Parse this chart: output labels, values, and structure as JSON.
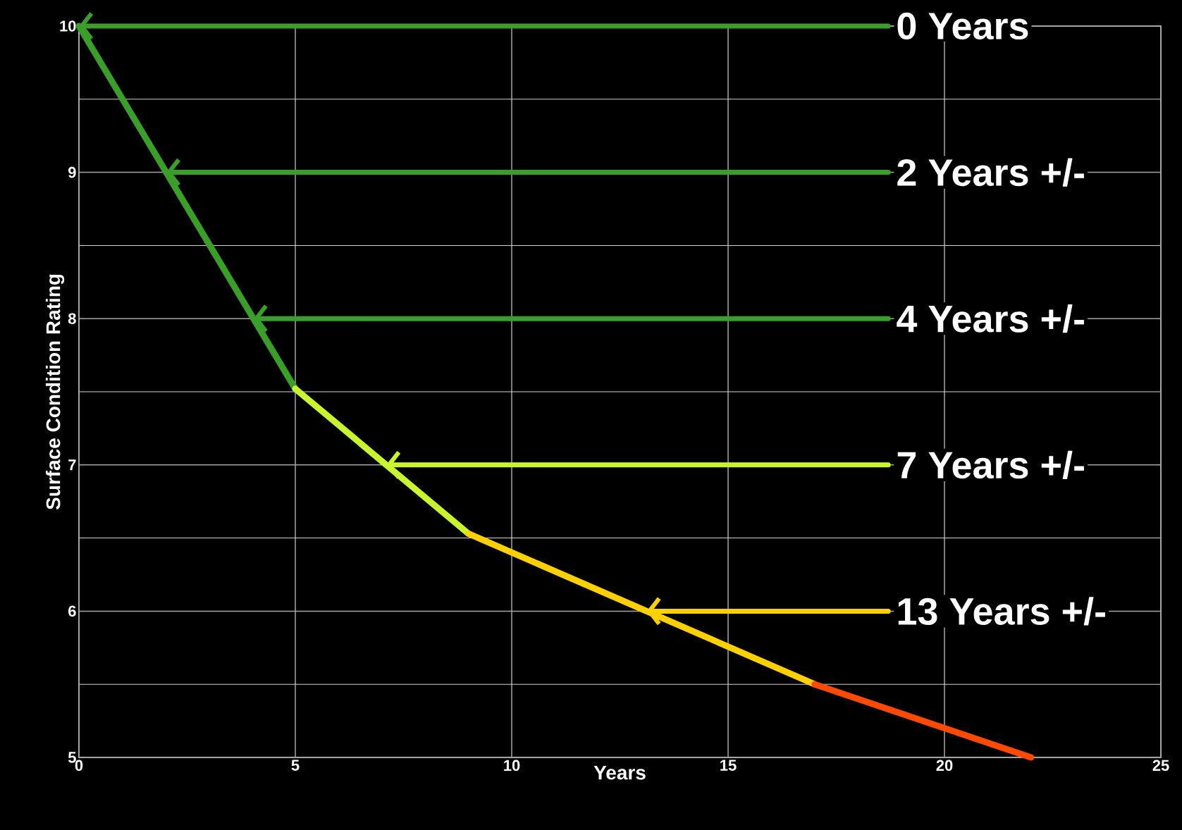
{
  "chart_data": {
    "type": "line",
    "xlabel": "Years",
    "ylabel": "Surface Condition Rating",
    "series": [
      {
        "x": [
          0,
          5
        ],
        "values": [
          10,
          7.52
        ],
        "color": "#3c9e2a"
      },
      {
        "x": [
          5,
          9
        ],
        "values": [
          7.52,
          6.53
        ],
        "color": "#c8f530"
      },
      {
        "x": [
          9,
          17
        ],
        "values": [
          6.53,
          5.5
        ],
        "color": "#ffd000"
      },
      {
        "x": [
          17,
          22
        ],
        "values": [
          5.5,
          5.0
        ],
        "color": "#ff4a00"
      }
    ],
    "xlim": [
      0,
      25
    ],
    "ylim": [
      5,
      10
    ],
    "xticks": [
      0,
      5,
      10,
      15,
      20,
      25
    ],
    "yticks": [
      5,
      6,
      7,
      8,
      9,
      10
    ],
    "grid": true,
    "annotations": [
      "0 Years",
      "2 Years +/-",
      "4 Years +/-",
      "7 Years +/-",
      "13 Years +/-"
    ]
  }
}
